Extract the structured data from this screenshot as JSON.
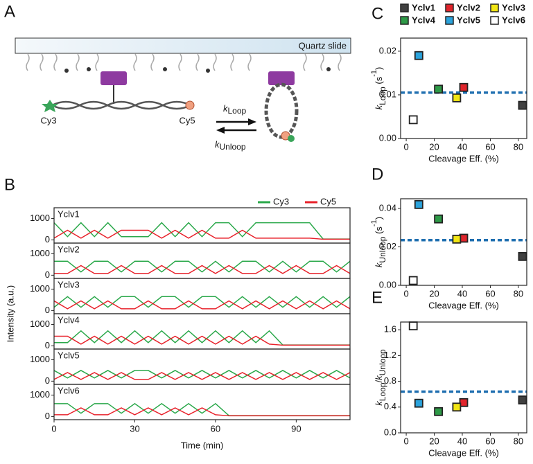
{
  "diagram": {
    "panel_label": "A",
    "slide": "Quartz slide",
    "donor": "Cy3",
    "acceptor": "Cy5",
    "k_loop": {
      "symbol": "k",
      "subscript": "Loop"
    },
    "k_unloop": {
      "symbol": "k",
      "subscript": "Unloop"
    }
  },
  "strains": [
    {
      "name": "Yclv1",
      "color": "#404040"
    },
    {
      "name": "Yclv2",
      "color": "#e0242b"
    },
    {
      "name": "Yclv3",
      "color": "#f2e614"
    },
    {
      "name": "Yclv4",
      "color": "#2e9a47"
    },
    {
      "name": "Yclv5",
      "color": "#2ba3dc"
    },
    {
      "name": "Yclv6",
      "color": "#ffffff"
    }
  ],
  "chart_data": [
    {
      "type": "line",
      "panel_label": "B",
      "xlabel": "Time (min)",
      "ylabel": "Intensity (a.u.)",
      "xlim": [
        0,
        110
      ],
      "xticks": [
        0,
        30,
        60,
        90
      ],
      "ylim": [
        -150,
        1500
      ],
      "yticks": [
        0,
        1000
      ],
      "x": [
        0,
        5,
        10,
        15,
        20,
        25,
        30,
        35,
        40,
        45,
        50,
        55,
        60,
        65,
        70,
        75,
        80,
        85,
        90,
        95,
        100,
        105,
        110
      ],
      "series": [
        {
          "name": "Cy3",
          "color": "#2aa84a"
        },
        {
          "name": "Cy5",
          "color": "#e8212a"
        }
      ],
      "panels": [
        {
          "label": "Yclv1",
          "values": [
            [
              800,
              150,
              800,
              150,
              800,
              150,
              150,
              150,
              800,
              150,
              800,
              150,
              800,
              800,
              150,
              800,
              800,
              800,
              800,
              800,
              40,
              40,
              40
            ],
            [
              80,
              450,
              80,
              450,
              80,
              450,
              450,
              450,
              80,
              450,
              80,
              450,
              80,
              80,
              450,
              80,
              80,
              80,
              80,
              80,
              30,
              30,
              30
            ]
          ]
        },
        {
          "label": "Yclv2",
          "values": [
            [
              650,
              650,
              150,
              650,
              650,
              150,
              650,
              650,
              150,
              650,
              650,
              150,
              650,
              150,
              650,
              650,
              150,
              650,
              150,
              650,
              650,
              150,
              650
            ],
            [
              80,
              80,
              450,
              80,
              80,
              450,
              80,
              80,
              450,
              80,
              80,
              450,
              80,
              450,
              80,
              80,
              450,
              80,
              450,
              80,
              80,
              450,
              80
            ]
          ]
        },
        {
          "label": "Yclv3",
          "values": [
            [
              150,
              650,
              150,
              650,
              150,
              650,
              650,
              150,
              650,
              650,
              150,
              650,
              650,
              150,
              650,
              150,
              650,
              150,
              650,
              150,
              650,
              150,
              650
            ],
            [
              450,
              80,
              450,
              80,
              450,
              80,
              80,
              450,
              80,
              80,
              450,
              80,
              80,
              450,
              80,
              450,
              80,
              450,
              80,
              450,
              80,
              450,
              80
            ]
          ]
        },
        {
          "label": "Yclv4",
          "values": [
            [
              150,
              150,
              700,
              150,
              700,
              150,
              700,
              150,
              700,
              150,
              700,
              150,
              700,
              150,
              700,
              150,
              700,
              40,
              40,
              40,
              40,
              40,
              40
            ],
            [
              450,
              450,
              80,
              450,
              80,
              450,
              80,
              450,
              80,
              450,
              80,
              450,
              80,
              450,
              80,
              450,
              80,
              30,
              30,
              30,
              30,
              30,
              30
            ]
          ]
        },
        {
          "label": "Yclv5",
          "values": [
            [
              500,
              150,
              500,
              150,
              500,
              150,
              500,
              500,
              150,
              500,
              150,
              500,
              150,
              500,
              150,
              500,
              150,
              500,
              150,
              500,
              150,
              500,
              150
            ],
            [
              80,
              400,
              80,
              400,
              80,
              400,
              80,
              80,
              400,
              80,
              400,
              80,
              400,
              80,
              400,
              80,
              400,
              80,
              400,
              80,
              400,
              80,
              400
            ]
          ]
        },
        {
          "label": "Yclv6",
          "values": [
            [
              600,
              600,
              150,
              600,
              600,
              150,
              600,
              150,
              600,
              150,
              600,
              150,
              600,
              40,
              40,
              40,
              40,
              40,
              40,
              40,
              40,
              40,
              40
            ],
            [
              80,
              80,
              400,
              80,
              80,
              400,
              80,
              400,
              80,
              400,
              80,
              400,
              80,
              30,
              30,
              30,
              30,
              30,
              30,
              30,
              30,
              30,
              30
            ]
          ]
        }
      ]
    },
    {
      "type": "scatter",
      "panel_label": "C",
      "xlabel": "Cleavage Eff. (%)",
      "ylabel": [
        {
          "text": "k",
          "style": "italic"
        },
        {
          "text": "Loop",
          "style": "sub"
        },
        {
          "text": " (s",
          "style": "normal"
        },
        {
          "text": "-1",
          "style": "sup"
        },
        {
          "text": ")",
          "style": "normal"
        }
      ],
      "xlim": [
        -4,
        86
      ],
      "xticks": [
        0,
        20,
        40,
        60,
        80
      ],
      "ylim": [
        0,
        0.023
      ],
      "yticks": [
        {
          "value": 0,
          "label": "0.00"
        },
        0.01,
        0.02
      ],
      "x": [
        83,
        41,
        36,
        23,
        9,
        5
      ],
      "values": [
        0.0076,
        0.0117,
        0.0093,
        0.0113,
        0.019,
        0.0043
      ],
      "mean_line": 0.0105,
      "mean_color": "#1f6fb0"
    },
    {
      "type": "scatter",
      "panel_label": "D",
      "xlabel": "Cleavage Eff. (%)",
      "ylabel": [
        {
          "text": "k",
          "style": "italic"
        },
        {
          "text": "Unloop",
          "style": "sub"
        },
        {
          "text": " (s",
          "style": "normal"
        },
        {
          "text": "-1",
          "style": "sup"
        },
        {
          "text": ")",
          "style": "normal"
        }
      ],
      "xlim": [
        -4,
        86
      ],
      "xticks": [
        0,
        20,
        40,
        60,
        80
      ],
      "ylim": [
        0,
        0.045
      ],
      "yticks": [
        {
          "value": 0,
          "label": "0.00"
        },
        0.02,
        0.04
      ],
      "x": [
        83,
        41,
        36,
        23,
        9,
        5
      ],
      "values": [
        0.015,
        0.0245,
        0.024,
        0.0345,
        0.042,
        0.0025
      ],
      "mean_line": 0.0235,
      "mean_color": "#1f6fb0"
    },
    {
      "type": "scatter",
      "panel_label": "E",
      "xlabel": "Cleavage Eff. (%)",
      "ylabel": [
        {
          "text": "k",
          "style": "italic"
        },
        {
          "text": "Loop",
          "style": "sub"
        },
        {
          "text": "/",
          "style": "normal"
        },
        {
          "text": "k",
          "style": "italic"
        },
        {
          "text": "Unloop",
          "style": "sub"
        }
      ],
      "xlim": [
        -4,
        86
      ],
      "xticks": [
        0,
        20,
        40,
        60,
        80
      ],
      "ylim": [
        0,
        1.72
      ],
      "yticks": [
        {
          "value": 0,
          "label": "0.0"
        },
        0.4,
        0.8,
        1.2,
        1.6
      ],
      "x": [
        83,
        41,
        36,
        23,
        9,
        5
      ],
      "values": [
        0.51,
        0.47,
        0.4,
        0.33,
        0.46,
        1.66
      ],
      "mean_line": 0.64,
      "mean_color": "#1f6fb0"
    }
  ]
}
